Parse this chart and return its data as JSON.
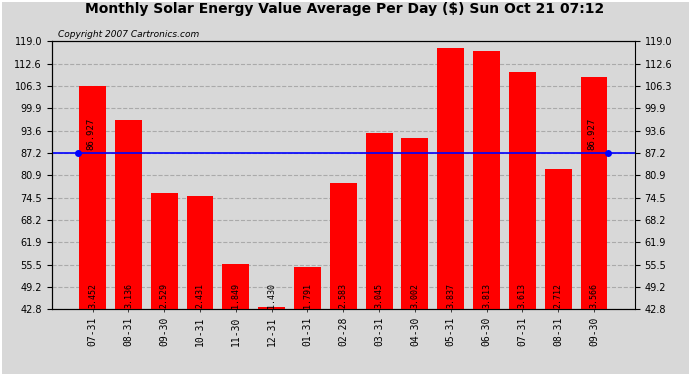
{
  "title": "Monthly Solar Energy Value Average Per Day ($) Sun Oct 21 07:12",
  "copyright": "Copyright 2007 Cartronics.com",
  "categories": [
    "07-31",
    "08-31",
    "09-30",
    "10-31",
    "11-30",
    "12-31",
    "01-31",
    "02-28",
    "03-31",
    "04-30",
    "05-31",
    "06-30",
    "07-31",
    "08-31",
    "09-30"
  ],
  "bar_labels": [
    "3.452",
    "3.136",
    "2.529",
    "2.431",
    "1.849",
    "1.430",
    "1.791",
    "2.583",
    "3.045",
    "3.002",
    "3.837",
    "3.813",
    "3.613",
    "2.712",
    "3.566"
  ],
  "bar_heights": [
    106.3,
    96.5,
    76.0,
    75.0,
    55.8,
    43.5,
    54.8,
    78.7,
    92.8,
    91.5,
    117.0,
    116.3,
    110.2,
    82.7,
    108.8
  ],
  "bar_color": "#ff0000",
  "average_line_y": 87.2,
  "average_label": "86.927",
  "ylim_min": 42.8,
  "ylim_max": 119.0,
  "yticks": [
    42.8,
    49.2,
    55.5,
    61.9,
    68.2,
    74.5,
    80.9,
    87.2,
    93.6,
    99.9,
    106.3,
    112.6,
    119.0
  ],
  "title_fontsize": 10,
  "copyright_fontsize": 6.5,
  "bar_label_fontsize": 6,
  "avg_label_fontsize": 6.5,
  "tick_fontsize": 7,
  "background_color": "#d8d8d8",
  "plot_bg_color": "#d8d8d8",
  "grid_color": "#aaaaaa",
  "avg_line_color": "#0000ff",
  "bar_width": 0.75
}
